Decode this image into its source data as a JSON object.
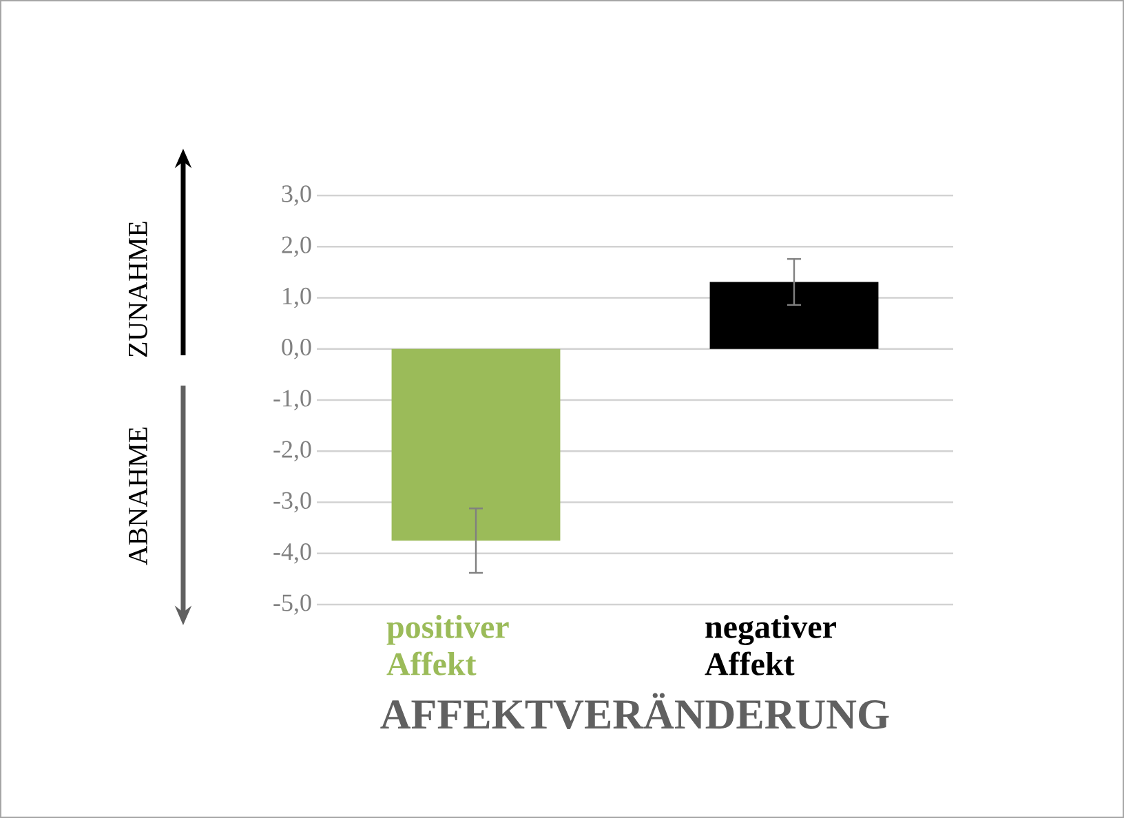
{
  "chart_data": {
    "type": "bar",
    "xlabel": "AFFEKTVERÄNDERUNG",
    "categories": [
      "positiver Affekt",
      "negativer Affekt"
    ],
    "values": [
      -3.75,
      1.31
    ],
    "errors": [
      0.63,
      0.45
    ],
    "colors": [
      "#9bbb59",
      "#000000"
    ],
    "ylim": [
      -5,
      3
    ],
    "yticks": [
      {
        "value": -5,
        "label": "-5,0"
      },
      {
        "value": -4,
        "label": "-4,0"
      },
      {
        "value": -3,
        "label": "-3,0"
      },
      {
        "value": -2,
        "label": "-2,0"
      },
      {
        "value": -1,
        "label": "-1,0"
      },
      {
        "value": 0,
        "label": "0,0"
      },
      {
        "value": 1,
        "label": "1,0"
      },
      {
        "value": 2,
        "label": "2,0"
      },
      {
        "value": 3,
        "label": "3,0"
      }
    ],
    "grid": "y",
    "annotations": [
      "ZUNAHME",
      "ABNAHME"
    ]
  }
}
